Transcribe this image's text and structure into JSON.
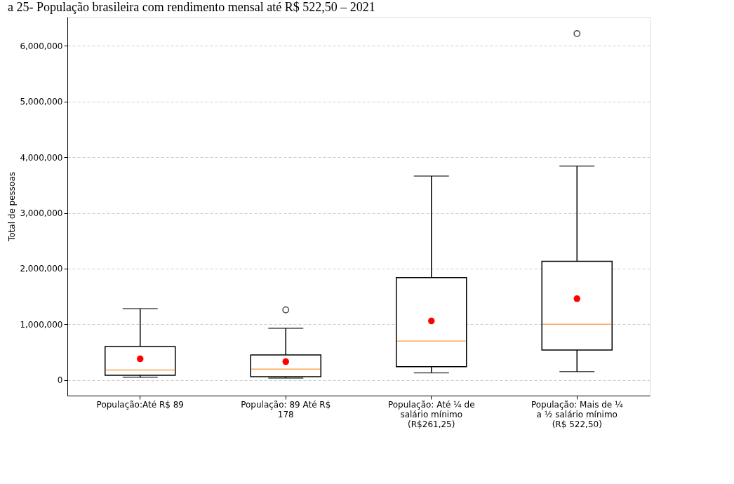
{
  "chart_data": {
    "type": "box",
    "title": "a 25- População brasileira com rendimento mensal até R$ 522,50 – 2021",
    "ylabel": "Total de pessoas",
    "categories": [
      "População:Até R$ 89",
      "População: 89 Até R$ 178",
      "População: Até ¼ de salário mínimo (R$261,25)",
      "População: Mais de ¼ a ½ salário mínimo (R$ 522,50)"
    ],
    "boxes": [
      {
        "low": 50000,
        "q1": 85000,
        "median": 180000,
        "q3": 600000,
        "high": 1280000,
        "mean": 380000
      },
      {
        "low": 35000,
        "q1": 60000,
        "median": 195000,
        "q3": 450000,
        "high": 930000,
        "mean": 330000,
        "outliers": [
          1260000
        ]
      },
      {
        "low": 130000,
        "q1": 240000,
        "median": 700000,
        "q3": 1840000,
        "high": 3660000,
        "mean": 1060000
      },
      {
        "low": 150000,
        "q1": 540000,
        "median": 1000000,
        "q3": 2130000,
        "high": 3840000,
        "mean": 1460000,
        "outliers": [
          6220000
        ]
      }
    ],
    "ylim": [
      -280000,
      6520000
    ],
    "yticks": [
      0,
      {
        "value": 1000000,
        "label": "1,000,000"
      },
      {
        "value": 2000000,
        "label": "2,000,000"
      },
      {
        "value": 3000000,
        "label": "3,000,000"
      },
      {
        "value": 4000000,
        "label": "4,000,000"
      },
      {
        "value": 5000000,
        "label": "5,000,000"
      },
      {
        "value": 6000000,
        "label": "6,000,000"
      }
    ],
    "grid": "y"
  }
}
